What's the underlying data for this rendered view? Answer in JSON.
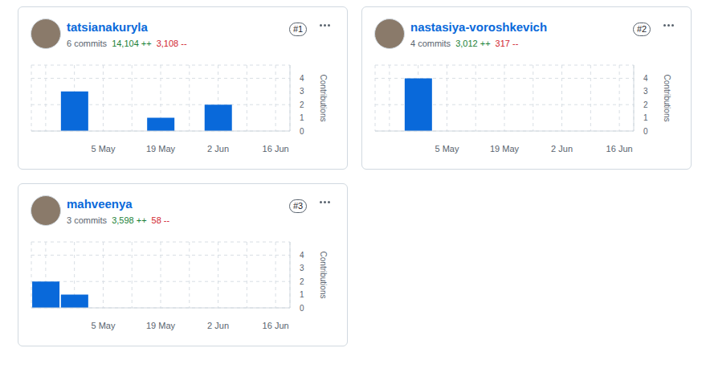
{
  "chart_data": [
    {
      "type": "bar",
      "title": "tatsianakuryla",
      "subtitle": "6 commits",
      "annotations": [
        "14,104 ++",
        "3,108 --",
        "#1"
      ],
      "y_label": "Contributions",
      "categories": [
        null,
        null,
        "5 May",
        null,
        "19 May",
        null,
        "2 Jun",
        null,
        "16 Jun"
      ],
      "values": [
        0,
        3,
        0,
        0,
        1,
        0,
        2,
        0,
        0
      ],
      "color": "#0969da",
      "ylim": [
        0,
        5
      ],
      "yticks": [
        0,
        1,
        2,
        3,
        4
      ],
      "grid": true
    },
    {
      "type": "bar",
      "title": "nastasiya-voroshkevich",
      "subtitle": "4 commits",
      "annotations": [
        "3,012 ++",
        "317 --",
        "#2"
      ],
      "y_label": "Contributions",
      "categories": [
        null,
        null,
        "5 May",
        null,
        "19 May",
        null,
        "2 Jun",
        null,
        "16 Jun"
      ],
      "values": [
        0,
        4,
        0,
        0,
        0,
        0,
        0,
        0,
        0
      ],
      "color": "#0969da",
      "ylim": [
        0,
        5
      ],
      "yticks": [
        0,
        1,
        2,
        3,
        4
      ],
      "grid": true
    },
    {
      "type": "bar",
      "title": "mahveenya",
      "subtitle": "3 commits",
      "annotations": [
        "3,598 ++",
        "58 --",
        "#3"
      ],
      "y_label": "Contributions",
      "categories": [
        null,
        null,
        "5 May",
        null,
        "19 May",
        null,
        "2 Jun",
        null,
        "16 Jun"
      ],
      "values": [
        2,
        1,
        0,
        0,
        0,
        0,
        0,
        0,
        0
      ],
      "color": "#0969da",
      "ylim": [
        0,
        5
      ],
      "yticks": [
        0,
        1,
        2,
        3,
        4
      ],
      "grid": true
    }
  ]
}
